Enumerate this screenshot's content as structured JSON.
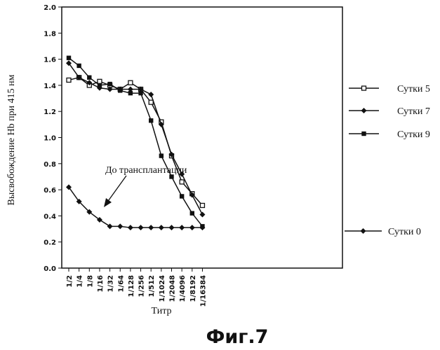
{
  "chart_data": {
    "type": "line",
    "xlabel": "Титр",
    "ylabel": "Высвобождение Hb при 415 нм",
    "caption": "Фиг.7",
    "annotation": "До трансплантации",
    "categories": [
      "1/2",
      "1/4",
      "1/8",
      "1/16",
      "1/32",
      "1/64",
      "1/128",
      "1/256",
      "1/512",
      "1/1024",
      "1/2048",
      "1/4096",
      "1/8192",
      "1/16384"
    ],
    "ylim": [
      0.0,
      2.0
    ],
    "yticks": [
      "0.0",
      "0.2",
      "0.4",
      "0.6",
      "0.8",
      "1.0",
      "1.2",
      "1.4",
      "1.6",
      "1.8",
      "2.0"
    ],
    "grid": false,
    "legend_position": "right",
    "series": [
      {
        "name": "Сутки 5",
        "marker": "open-square",
        "values": [
          1.44,
          1.46,
          1.4,
          1.43,
          1.4,
          1.37,
          1.42,
          1.37,
          1.27,
          1.12,
          0.86,
          0.66,
          0.57,
          0.48
        ]
      },
      {
        "name": "Сутки 7",
        "marker": "diamond",
        "values": [
          1.57,
          1.46,
          1.42,
          1.38,
          1.37,
          1.37,
          1.37,
          1.37,
          1.33,
          1.1,
          0.87,
          0.72,
          0.56,
          0.41
        ]
      },
      {
        "name": "Сутки 9",
        "marker": "filled-square",
        "values": [
          1.61,
          1.55,
          1.46,
          1.4,
          1.41,
          1.36,
          1.34,
          1.34,
          1.13,
          0.86,
          0.7,
          0.55,
          0.42,
          0.32
        ]
      },
      {
        "name": "Сутки 0",
        "marker": "diamond",
        "values": [
          0.62,
          0.51,
          0.43,
          0.37,
          0.32,
          0.32,
          0.31,
          0.31,
          0.31,
          0.31,
          0.31,
          0.31,
          0.31,
          0.31
        ]
      }
    ],
    "colors": {
      "line": "#111111",
      "open_marker_fill": "#ffffff"
    }
  }
}
